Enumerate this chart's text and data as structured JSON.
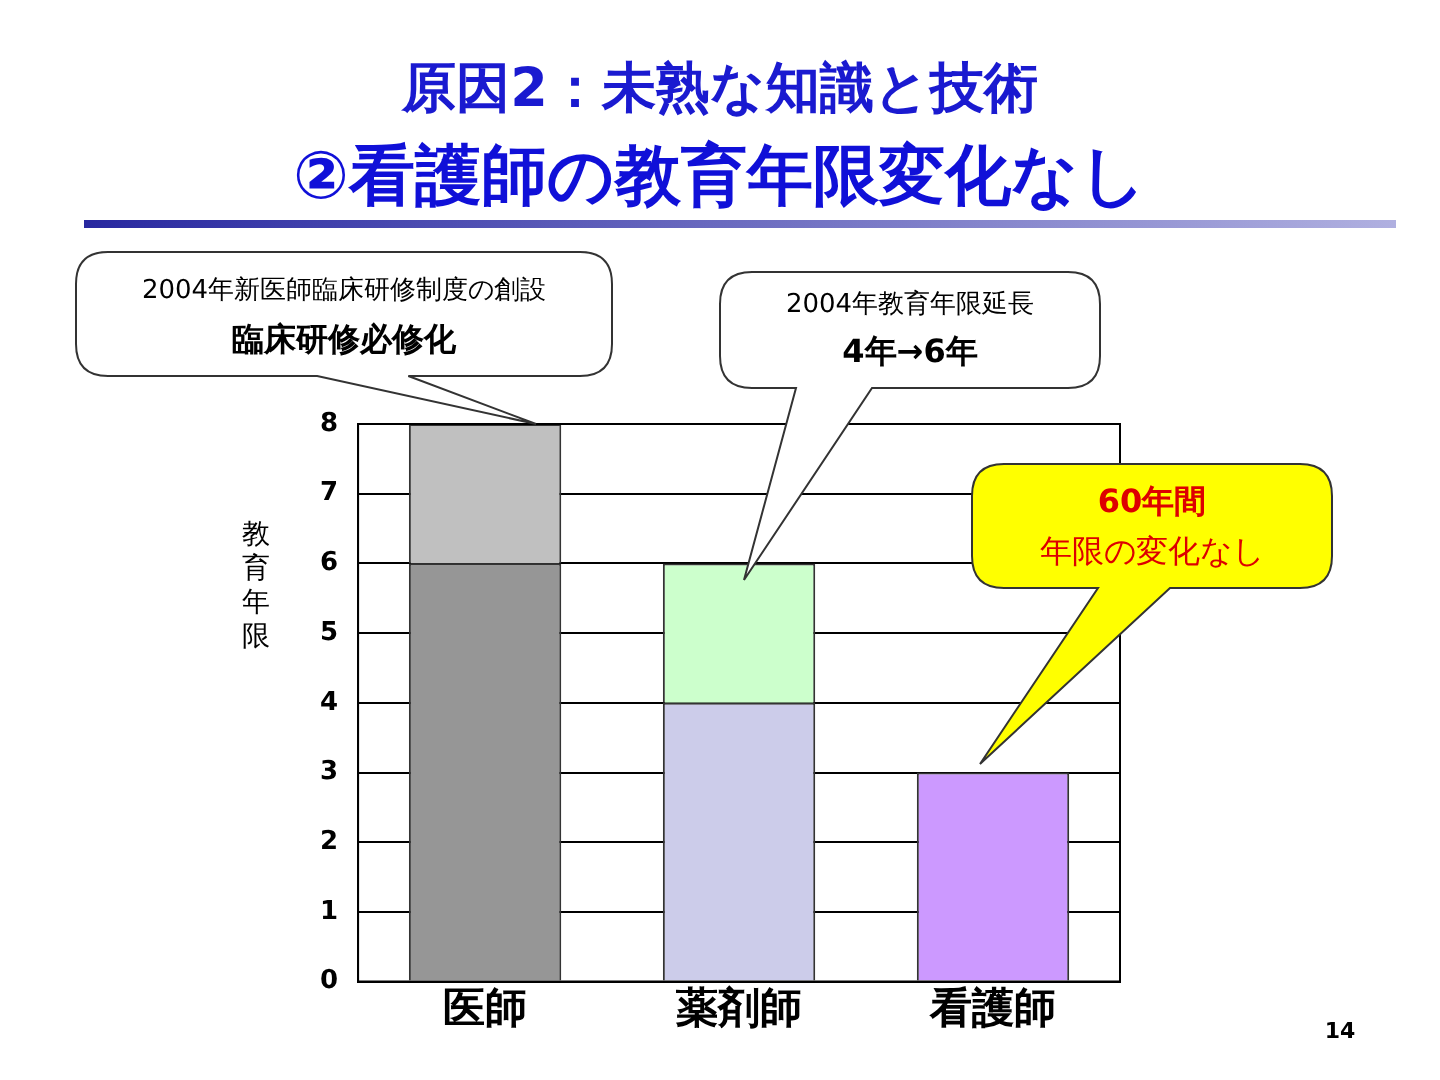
{
  "chart_data": {
    "type": "bar",
    "title": "原因2：未熟な知識と技術",
    "subtitle": "②看護師の教育年限変化なし",
    "ylabel": "教育年限",
    "categories": [
      "医師",
      "薬剤師",
      "看護師"
    ],
    "stacked": true,
    "series": [
      {
        "colors": [
          "#969696",
          "#ccccea",
          "#cc99ff"
        ],
        "values": [
          6,
          4,
          3
        ]
      },
      {
        "colors": [
          "#c0c0c0",
          "#ccffcc",
          "#cc99ff"
        ],
        "values": [
          2,
          2,
          null
        ]
      }
    ],
    "ylim": [
      0,
      8
    ],
    "yticks": [
      0,
      1,
      2,
      3,
      4,
      5,
      6,
      7,
      8
    ],
    "grid": "y",
    "legend": false,
    "annotations": [
      "2004年新医師臨床研修制度の創設",
      "臨床研修必修化",
      "2004年教育年限延長",
      "4年→6年",
      "60年間",
      "年限の変化なし",
      "14"
    ]
  }
}
